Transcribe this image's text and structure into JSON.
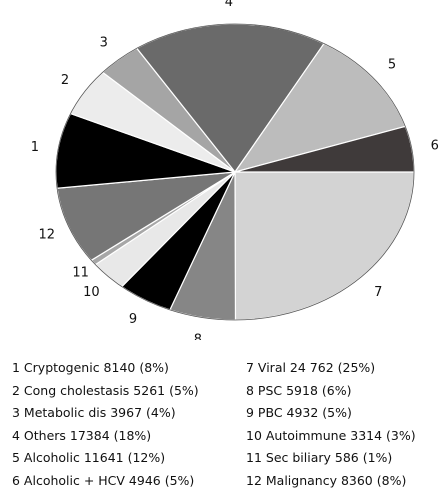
{
  "chart_data": {
    "type": "pie",
    "start_angle_deg": 0,
    "direction": "clockwise-from-right",
    "slice_order": [
      7,
      8,
      9,
      10,
      11,
      12,
      1,
      2,
      3,
      4,
      5,
      6
    ],
    "slices": [
      {
        "id": 1,
        "number": "1",
        "label": "Cryptogenic",
        "value": 8140,
        "value_text": "8140",
        "percent_text": "(8%)",
        "color": "#000000"
      },
      {
        "id": 2,
        "number": "2",
        "label": "Cong cholestasis",
        "value": 5261,
        "value_text": "5261",
        "percent_text": "(5%)",
        "color": "#ececec"
      },
      {
        "id": 3,
        "number": "3",
        "label": "Metabolic dis",
        "value": 3967,
        "value_text": "3967",
        "percent_text": "(4%)",
        "color": "#a5a5a5"
      },
      {
        "id": 4,
        "number": "4",
        "label": "Others",
        "value": 17384,
        "value_text": "17384",
        "percent_text": "(18%)",
        "color": "#6a6a6a"
      },
      {
        "id": 5,
        "number": "5",
        "label": "Alcoholic",
        "value": 11641,
        "value_text": "11641",
        "percent_text": "(12%)",
        "color": "#bcbcbc"
      },
      {
        "id": 6,
        "number": "6",
        "label": "Alcoholic + HCV",
        "value": 4946,
        "value_text": "4946",
        "percent_text": "(5%)",
        "color": "#3f3a3a"
      },
      {
        "id": 7,
        "number": "7",
        "label": "Viral",
        "value": 24762,
        "value_text": "24 762",
        "percent_text": "(25%)",
        "color": "#d3d3d3"
      },
      {
        "id": 8,
        "number": "8",
        "label": "PSC",
        "value": 5918,
        "value_text": "5918",
        "percent_text": "(6%)",
        "color": "#868686"
      },
      {
        "id": 9,
        "number": "9",
        "label": "PBC",
        "value": 4932,
        "value_text": "4932",
        "percent_text": "(5%)",
        "color": "#000000"
      },
      {
        "id": 10,
        "number": "10",
        "label": "Autoimmune",
        "value": 3314,
        "value_text": "3314",
        "percent_text": "(3%)",
        "color": "#e8e8e8"
      },
      {
        "id": 11,
        "number": "11",
        "label": "Sec biliary",
        "value": 586,
        "value_text": "586",
        "percent_text": "(1%)",
        "color": "#a7a7a7"
      },
      {
        "id": 12,
        "number": "12",
        "label": "Malignancy",
        "value": 8360,
        "value_text": "8360",
        "percent_text": "(8%)",
        "color": "#767676"
      }
    ],
    "legend": {
      "columns": [
        [
          1,
          2,
          3,
          4,
          5,
          6
        ],
        [
          7,
          8,
          9,
          10,
          11,
          12
        ]
      ]
    }
  }
}
